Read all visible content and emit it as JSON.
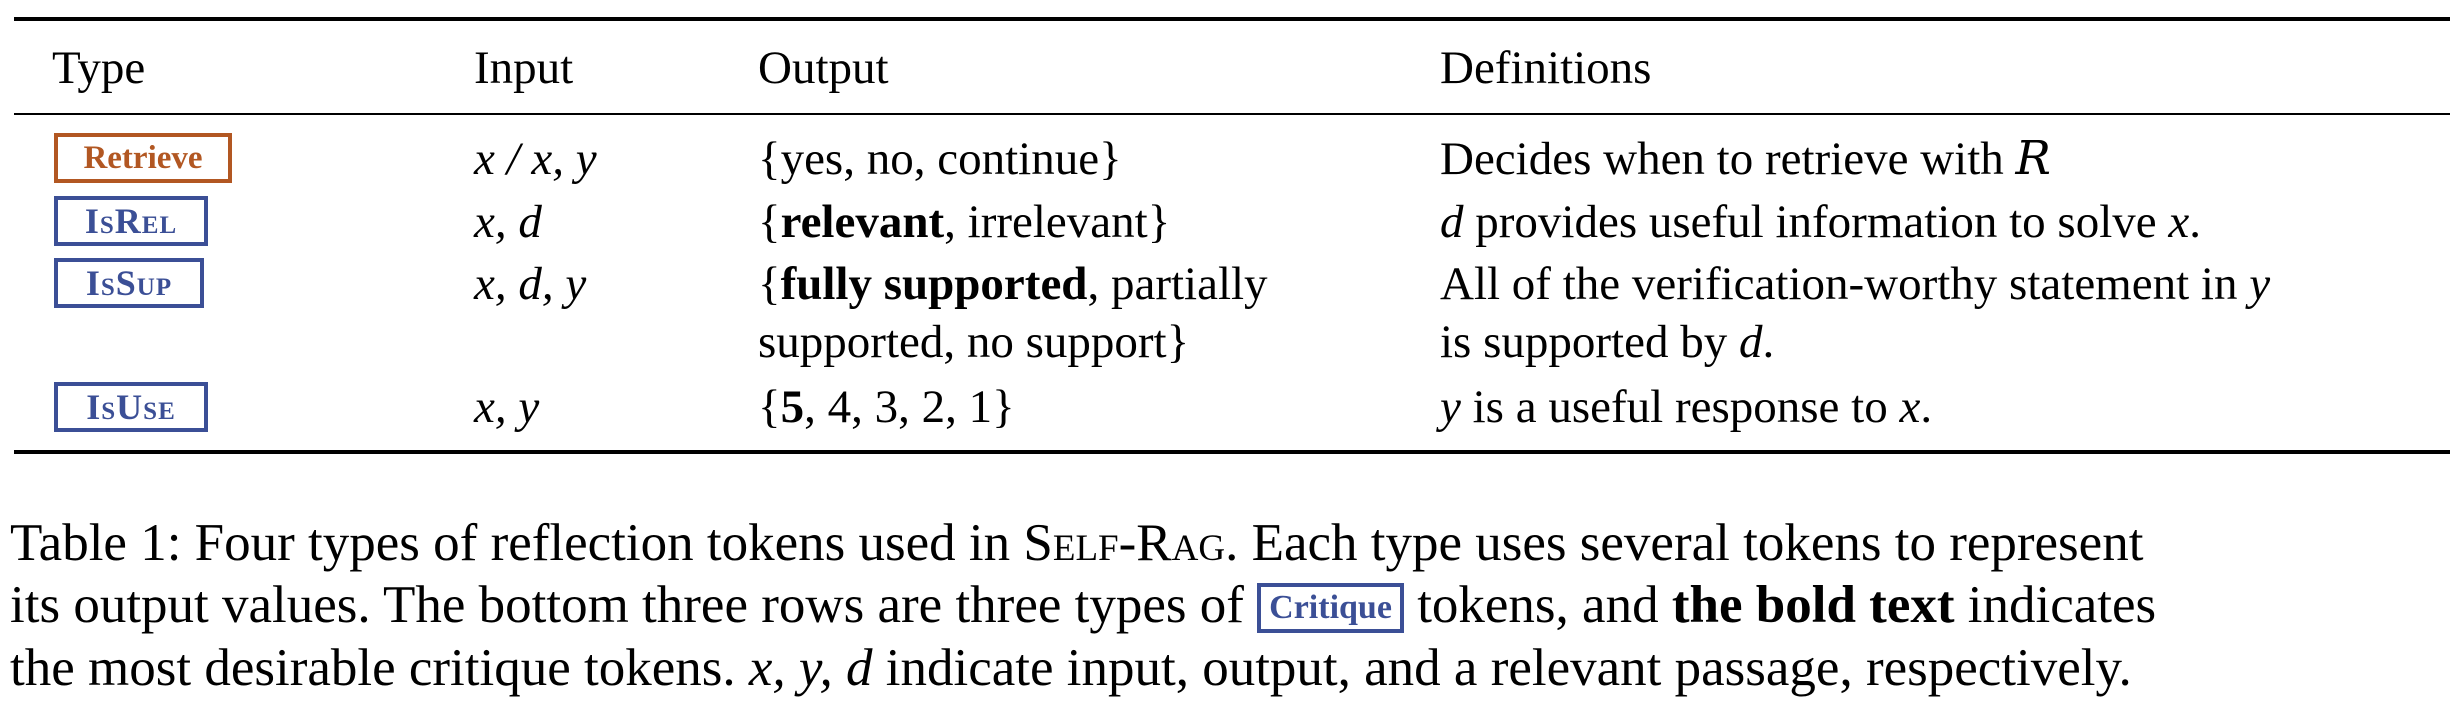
{
  "table": {
    "headers": {
      "type": "Type",
      "input": "Input",
      "output": "Output",
      "definitions": "Definitions"
    },
    "rows": [
      {
        "token": "Retrieve",
        "token_color": "#b25722",
        "input": "x / x, y",
        "output": {
          "open": "{",
          "bold": "",
          "rest": "yes, no, continue",
          "close": "}"
        },
        "definition": {
          "text": "Decides when to retrieve with ",
          "math": "R"
        }
      },
      {
        "token": "IsRel",
        "token_color": "#3b4f96",
        "input": "x, d",
        "output": {
          "open": "{",
          "bold": "relevant",
          "rest": ", irrelevant",
          "close": "}"
        },
        "definition": {
          "math1": "d",
          "text": " provides useful information to solve ",
          "math2": "x",
          "end": "."
        }
      },
      {
        "token": "IsSup",
        "token_color": "#3b4f96",
        "input": "x, d, y",
        "output": {
          "open": "{",
          "bold": "fully supported",
          "rest": ", partially",
          "line2": "supported, no support",
          "close": "}"
        },
        "definition": {
          "line1": "All of the verification-worthy statement in ",
          "math1": "y",
          "line2": "is supported by ",
          "math2": "d",
          "end": "."
        }
      },
      {
        "token": "IsUse",
        "token_color": "#3b4f96",
        "input": "x, y",
        "output": {
          "open": "{",
          "bold": "5",
          "rest": ", 4, 3, 2, 1",
          "close": "}"
        },
        "definition": {
          "math1": "y",
          "text": " is a useful response to ",
          "math2": "x",
          "end": "."
        }
      }
    ]
  },
  "caption": {
    "label": "Table 1: Four types of reflection tokens used in ",
    "system": "Self-Rag",
    "part1": ". Each type uses several tokens to represent",
    "part2": "its output values. The bottom three rows are three types of ",
    "critique": "Critique",
    "part3": " tokens, and ",
    "bold": "the bold text",
    "part4": " indicates",
    "part5": "the most desirable critique tokens. ",
    "vars": "x, y, d",
    "part6": " indicate input, output, and a relevant passage, respectively."
  }
}
